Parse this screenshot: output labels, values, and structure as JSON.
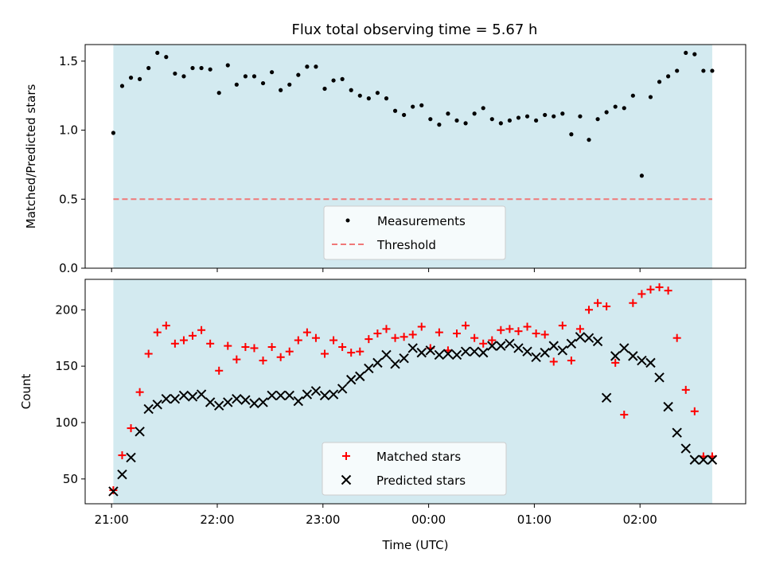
{
  "figure": {
    "title": "Flux total observing time = 5.67 h",
    "xlabel": "Time (UTC)",
    "x_tick_labels": [
      "21:00",
      "22:00",
      "23:00",
      "00:00",
      "01:00",
      "02:00"
    ],
    "colors": {
      "observing_band": "#d3eaf0",
      "measurements": "#000000",
      "threshold": "#f07878",
      "matched": "#ff0000",
      "predicted": "#000000"
    }
  },
  "chart_data": [
    {
      "type": "scatter",
      "panel": "top",
      "ylabel": "Matched/Predicted stars",
      "ylim": [
        0,
        1.62
      ],
      "y_ticks": [
        "0.0",
        "0.5",
        "1.0",
        "1.5"
      ],
      "y_tick_values": [
        0,
        0.5,
        1.0,
        1.5
      ],
      "x_unit": "minutes after 21:00 UTC",
      "xlim": [
        -15,
        360
      ],
      "shaded_span": [
        1,
        341
      ],
      "legend": {
        "placement": "lower-center",
        "entries": [
          "Measurements",
          "Threshold"
        ]
      },
      "threshold": {
        "name": "Threshold",
        "y": 0.5,
        "style": "dashed"
      },
      "series": [
        {
          "name": "Measurements",
          "marker": "dot",
          "x": [
            1,
            6,
            11,
            16,
            21,
            26,
            31,
            36,
            41,
            46,
            51,
            56,
            61,
            66,
            71,
            76,
            81,
            86,
            91,
            96,
            101,
            106,
            111,
            116,
            121,
            126,
            131,
            136,
            141,
            146,
            151,
            156,
            161,
            166,
            171,
            176,
            181,
            186,
            191,
            196,
            201,
            206,
            211,
            216,
            221,
            226,
            231,
            236,
            241,
            246,
            251,
            256,
            261,
            266,
            271,
            276,
            281,
            286,
            291,
            296,
            301,
            306,
            311,
            316,
            321,
            326,
            331,
            336,
            341
          ],
          "y": [
            0.98,
            1.32,
            1.38,
            1.37,
            1.45,
            1.56,
            1.53,
            1.41,
            1.39,
            1.45,
            1.45,
            1.44,
            1.27,
            1.47,
            1.33,
            1.39,
            1.39,
            1.34,
            1.42,
            1.29,
            1.33,
            1.4,
            1.46,
            1.46,
            1.3,
            1.36,
            1.37,
            1.29,
            1.25,
            1.23,
            1.27,
            1.23,
            1.14,
            1.11,
            1.17,
            1.18,
            1.08,
            1.04,
            1.12,
            1.07,
            1.05,
            1.12,
            1.16,
            1.08,
            1.05,
            1.07,
            1.09,
            1.1,
            1.07,
            1.11,
            1.1,
            1.12,
            0.97,
            1.1,
            0.93,
            1.08,
            1.13,
            1.17,
            1.16,
            1.25,
            0.67,
            1.24,
            1.35,
            1.39,
            1.43,
            1.56,
            1.55,
            1.43,
            1.43
          ]
        }
      ]
    },
    {
      "type": "scatter",
      "panel": "bottom",
      "ylabel": "Count",
      "ylim": [
        28,
        227
      ],
      "y_ticks": [
        "50",
        "100",
        "150",
        "200"
      ],
      "y_tick_values": [
        50,
        100,
        150,
        200
      ],
      "x_unit": "minutes after 21:00 UTC",
      "xlim": [
        -15,
        360
      ],
      "shaded_span": [
        1,
        341
      ],
      "legend": {
        "placement": "lower-center",
        "entries": [
          "Matched stars",
          "Predicted stars"
        ]
      },
      "series": [
        {
          "name": "Matched stars",
          "marker": "plus",
          "x": [
            1,
            6,
            11,
            16,
            21,
            26,
            31,
            36,
            41,
            46,
            51,
            56,
            61,
            66,
            71,
            76,
            81,
            86,
            91,
            96,
            101,
            106,
            111,
            116,
            121,
            126,
            131,
            136,
            141,
            146,
            151,
            156,
            161,
            166,
            171,
            176,
            181,
            186,
            191,
            196,
            201,
            206,
            211,
            216,
            221,
            226,
            231,
            236,
            241,
            246,
            251,
            256,
            261,
            266,
            271,
            276,
            281,
            286,
            291,
            296,
            301,
            306,
            311,
            316,
            321,
            326,
            331,
            336,
            341
          ],
          "y": [
            40,
            71,
            95,
            127,
            161,
            180,
            186,
            170,
            173,
            177,
            182,
            170,
            146,
            168,
            156,
            167,
            166,
            155,
            167,
            158,
            163,
            173,
            180,
            175,
            161,
            173,
            167,
            162,
            163,
            174,
            179,
            183,
            175,
            176,
            178,
            185,
            166,
            180,
            164,
            179,
            186,
            175,
            170,
            173,
            182,
            183,
            181,
            185,
            179,
            178,
            154,
            186,
            155,
            183,
            200,
            206,
            203,
            153,
            107,
            206,
            214,
            218,
            220,
            217,
            175,
            129,
            110,
            70,
            70
          ]
        },
        {
          "name": "Predicted stars",
          "marker": "x",
          "x": [
            1,
            6,
            11,
            16,
            21,
            26,
            31,
            36,
            41,
            46,
            51,
            56,
            61,
            66,
            71,
            76,
            81,
            86,
            91,
            96,
            101,
            106,
            111,
            116,
            121,
            126,
            131,
            136,
            141,
            146,
            151,
            156,
            161,
            166,
            171,
            176,
            181,
            186,
            191,
            196,
            201,
            206,
            211,
            216,
            221,
            226,
            231,
            236,
            241,
            246,
            251,
            256,
            261,
            266,
            271,
            276,
            281,
            286,
            291,
            296,
            301,
            306,
            311,
            316,
            321,
            326,
            331,
            336,
            341
          ],
          "y": [
            39,
            54,
            69,
            92,
            112,
            116,
            121,
            121,
            124,
            123,
            125,
            118,
            115,
            118,
            121,
            120,
            117,
            118,
            124,
            124,
            124,
            119,
            125,
            128,
            124,
            125,
            130,
            138,
            141,
            148,
            153,
            160,
            152,
            157,
            166,
            162,
            164,
            160,
            161,
            160,
            163,
            163,
            162,
            168,
            168,
            170,
            166,
            163,
            158,
            162,
            168,
            164,
            170,
            176,
            175,
            172,
            122,
            159,
            166,
            159,
            155,
            153,
            140,
            114,
            91,
            77,
            67,
            67,
            67
          ]
        }
      ]
    }
  ]
}
